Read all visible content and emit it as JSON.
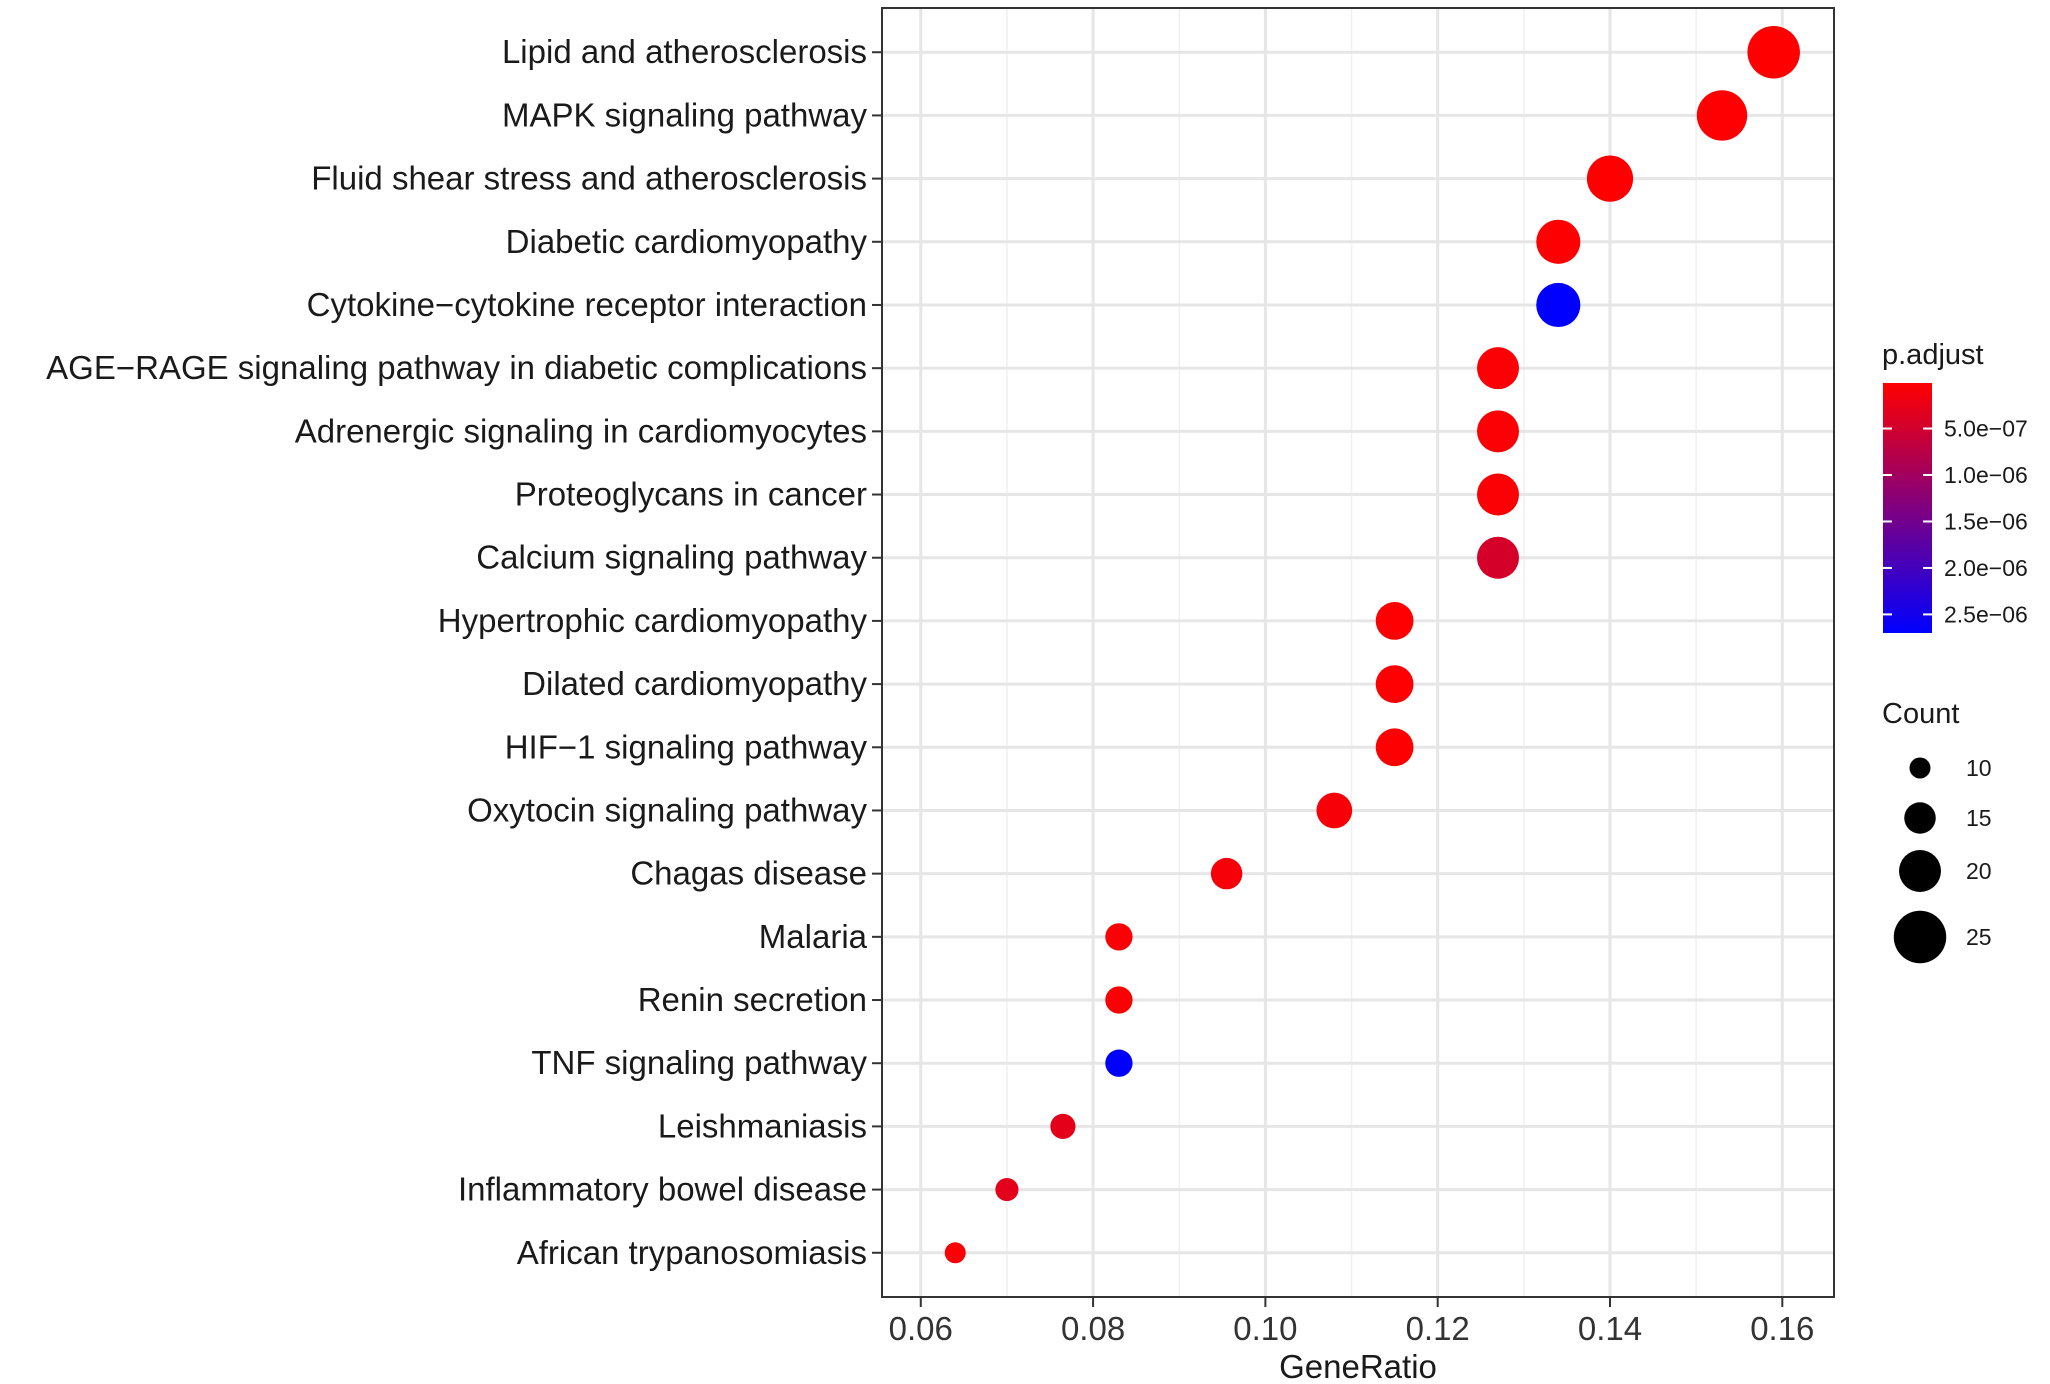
{
  "chart_data": {
    "type": "scatter",
    "xlabel": "GeneRatio",
    "xlim": [
      0.0555,
      0.166
    ],
    "x_ticks": [
      "0.06",
      "0.08",
      "0.10",
      "0.12",
      "0.14",
      "0.16"
    ],
    "categories": [
      "Lipid and atherosclerosis",
      "MAPK signaling pathway",
      "Fluid shear stress and atherosclerosis",
      "Diabetic cardiomyopathy",
      "Cytokine−cytokine receptor interaction",
      "AGE−RAGE signaling pathway in diabetic complications",
      "Adrenergic signaling in cardiomyocytes",
      "Proteoglycans in cancer",
      "Calcium signaling pathway",
      "Hypertrophic cardiomyopathy",
      "Dilated cardiomyopathy",
      "HIF−1 signaling pathway",
      "Oxytocin signaling pathway",
      "Chagas disease",
      "Malaria",
      "Renin secretion",
      "TNF signaling pathway",
      "Leishmaniasis",
      "Inflammatory bowel disease",
      "African trypanosomiasis"
    ],
    "gene_ratio": [
      0.159,
      0.153,
      0.14,
      0.134,
      0.134,
      0.127,
      0.127,
      0.127,
      0.127,
      0.115,
      0.115,
      0.115,
      0.108,
      0.0955,
      0.083,
      0.083,
      0.083,
      0.0765,
      0.07,
      0.064
    ],
    "count": [
      25,
      24,
      22,
      21,
      21,
      20,
      20,
      20,
      20,
      18,
      18,
      18,
      17,
      15,
      13,
      13,
      13,
      12,
      11,
      10
    ],
    "p_adjust": [
      1e-08,
      2e-08,
      1e-08,
      3e-08,
      2.7e-06,
      5e-08,
      5e-08,
      5e-08,
      4.5e-07,
      2e-08,
      2e-08,
      3e-08,
      8e-08,
      1e-07,
      5e-08,
      6e-08,
      2.7e-06,
      2.8e-07,
      2.9e-07,
      5e-08
    ],
    "color_legend": {
      "title": "p.adjust",
      "ticks": [
        "5.0e−07",
        "1.0e−06",
        "1.5e−06",
        "2.0e−06",
        "2.5e−06"
      ],
      "tick_values": [
        5e-07,
        1e-06,
        1.5e-06,
        2e-06,
        2.5e-06
      ],
      "range": [
        1e-08,
        2.7e-06
      ],
      "low_color": "#ff0000",
      "high_color": "#0000ff"
    },
    "size_legend": {
      "title": "Count",
      "values": [
        10,
        15,
        20,
        25
      ],
      "labels": [
        "10",
        "15",
        "20",
        "25"
      ]
    },
    "grid": true,
    "legend_position": "right"
  }
}
